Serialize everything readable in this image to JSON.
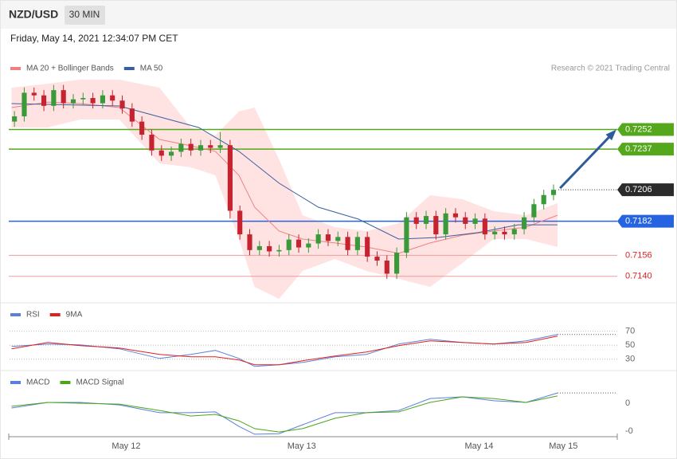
{
  "header": {
    "symbol": "NZD/USD",
    "interval": "30 MIN",
    "timestamp": "Friday, May 14, 2021 12:34:07 PM CET",
    "credit": "Research © 2021 Trading Central"
  },
  "chart_data": [
    {
      "type": "candlestick",
      "xlim": [
        0,
        62
      ],
      "ylim": [
        0.7121,
        0.7293
      ],
      "up_color": "#3a9a3a",
      "down_color": "#c62330",
      "open": [
        0.7258,
        0.7262,
        0.728,
        0.7278,
        0.727,
        0.7282,
        0.7272,
        0.7275,
        0.7276,
        0.7272,
        0.7278,
        0.7274,
        0.7268,
        0.7258,
        0.7248,
        0.7236,
        0.7232,
        0.7235,
        0.7241,
        0.7236,
        0.724,
        0.7238,
        0.724,
        0.719,
        0.7172,
        0.716,
        0.7163,
        0.7159,
        0.716,
        0.7168,
        0.7162,
        0.7165,
        0.7172,
        0.7167,
        0.717,
        0.716,
        0.717,
        0.7155,
        0.7152,
        0.7142,
        0.7158,
        0.7185,
        0.718,
        0.7186,
        0.7172,
        0.7188,
        0.7185,
        0.718,
        0.7184,
        0.7172,
        0.7174,
        0.7172,
        0.7176,
        0.7185,
        0.7195,
        0.7202
      ],
      "high": [
        0.7266,
        0.7284,
        0.7284,
        0.7282,
        0.7286,
        0.7286,
        0.7279,
        0.728,
        0.728,
        0.7282,
        0.7282,
        0.7278,
        0.7272,
        0.7262,
        0.7252,
        0.724,
        0.7239,
        0.7245,
        0.7245,
        0.7244,
        0.7244,
        0.725,
        0.7244,
        0.7194,
        0.7176,
        0.7167,
        0.7167,
        0.7164,
        0.7172,
        0.7172,
        0.7169,
        0.7176,
        0.7176,
        0.7174,
        0.7174,
        0.7174,
        0.7174,
        0.7159,
        0.7156,
        0.7162,
        0.7189,
        0.7189,
        0.719,
        0.719,
        0.7192,
        0.7192,
        0.7189,
        0.7188,
        0.7188,
        0.7178,
        0.7178,
        0.718,
        0.7189,
        0.7199,
        0.7206,
        0.721
      ],
      "low": [
        0.7254,
        0.7258,
        0.7274,
        0.7266,
        0.7266,
        0.7268,
        0.7268,
        0.7271,
        0.7268,
        0.7268,
        0.727,
        0.7264,
        0.7254,
        0.7244,
        0.7232,
        0.7228,
        0.7228,
        0.7231,
        0.7232,
        0.7232,
        0.7234,
        0.7234,
        0.7184,
        0.7168,
        0.7156,
        0.7156,
        0.7155,
        0.7155,
        0.7156,
        0.7158,
        0.7158,
        0.7161,
        0.7163,
        0.7163,
        0.7156,
        0.7156,
        0.7151,
        0.7148,
        0.7138,
        0.7138,
        0.7154,
        0.7176,
        0.7176,
        0.7168,
        0.7168,
        0.7181,
        0.7176,
        0.7176,
        0.7168,
        0.7168,
        0.7168,
        0.7168,
        0.7172,
        0.7181,
        0.7191,
        0.7198
      ],
      "close": [
        0.7262,
        0.728,
        0.7278,
        0.727,
        0.7282,
        0.7272,
        0.7275,
        0.7276,
        0.7272,
        0.7278,
        0.7274,
        0.7268,
        0.7258,
        0.7248,
        0.7236,
        0.7232,
        0.7235,
        0.7241,
        0.7236,
        0.724,
        0.7238,
        0.724,
        0.719,
        0.7172,
        0.716,
        0.7163,
        0.7159,
        0.716,
        0.7168,
        0.7162,
        0.7165,
        0.7172,
        0.7167,
        0.717,
        0.716,
        0.717,
        0.7155,
        0.7152,
        0.7142,
        0.7158,
        0.7185,
        0.718,
        0.7186,
        0.7172,
        0.7188,
        0.7185,
        0.718,
        0.7184,
        0.7172,
        0.7174,
        0.7172,
        0.7176,
        0.7185,
        0.7195,
        0.7202,
        0.7206
      ],
      "series": [
        {
          "name": "MA 20 + Bollinger Bands",
          "color": "#f08080",
          "band_color": "#ffdcdc",
          "x": [
            0.2,
            3.9,
            7.2,
            11.2,
            15.3,
            18.5,
            21,
            23.4,
            25,
            27.5,
            29.9,
            33.2,
            36.4,
            39.7,
            42.9,
            46.2,
            49.4,
            52.7,
            55.9
          ],
          "values": [
            0.72687,
            0.72729,
            0.72717,
            0.72687,
            0.72444,
            0.72395,
            0.72353,
            0.7217,
            0.71927,
            0.71745,
            0.71684,
            0.71654,
            0.71623,
            0.71575,
            0.71654,
            0.71714,
            0.71745,
            0.71775,
            0.71866
          ],
          "upper": [
            0.72839,
            0.72869,
            0.729,
            0.729,
            0.72839,
            0.72535,
            0.72475,
            0.72657,
            0.72687,
            0.72292,
            0.71866,
            0.71775,
            0.71745,
            0.71805,
            0.72018,
            0.71988,
            0.71897,
            0.71866,
            0.71958
          ],
          "lower": [
            0.72535,
            0.72535,
            0.72596,
            0.72596,
            0.72261,
            0.72231,
            0.7217,
            0.71684,
            0.71319,
            0.71228,
            0.71441,
            0.71532,
            0.71441,
            0.7138,
            0.71319,
            0.71502,
            0.71684,
            0.71684,
            0.71623
          ]
        },
        {
          "name": "MA 50",
          "color": "#3a5fa0",
          "x": [
            0.2,
            11.2,
            19.3,
            23.4,
            27.5,
            31.5,
            35.6,
            39.7,
            43.7,
            47.8,
            51.9,
            55.9
          ],
          "values": [
            0.72717,
            0.72699,
            0.72535,
            0.72353,
            0.7211,
            0.71927,
            0.71836,
            0.71684,
            0.71696,
            0.71733,
            0.71793,
            0.71793
          ]
        }
      ],
      "levels": [
        {
          "value": 0.7252,
          "label": "0.7252",
          "color": "#55a81c",
          "style": "box"
        },
        {
          "value": 0.7237,
          "label": "0.7237",
          "color": "#55a81c",
          "style": "box"
        },
        {
          "value": 0.7206,
          "label": "0.7206",
          "color": "#2b2b2b",
          "style": "current"
        },
        {
          "value": 0.7182,
          "label": "0.7182",
          "color": "#2563e0",
          "style": "box"
        },
        {
          "value": 0.7156,
          "label": "0.7156",
          "color": "#f29a9a",
          "style": "text"
        },
        {
          "value": 0.714,
          "label": "0.7140",
          "color": "#f29a9a",
          "style": "text"
        }
      ]
    },
    {
      "type": "line",
      "xlim": [
        0,
        62
      ],
      "ylim": [
        16,
        105
      ],
      "yticks": [
        30,
        50,
        70
      ],
      "grid": true,
      "x": [
        0.2,
        3.9,
        7.2,
        11.2,
        15.3,
        18.5,
        21,
        23.4,
        25,
        27.5,
        29.9,
        33.2,
        36.4,
        39.7,
        42.9,
        46.2,
        49.4,
        52.7,
        55.9
      ],
      "series": [
        {
          "name": "RSI",
          "color": "#5b7fdc",
          "values": [
            48.3,
            51.7,
            50.6,
            44.9,
            31.1,
            36.9,
            42.6,
            31.1,
            19.7,
            22,
            25.4,
            33.4,
            36.9,
            51.7,
            58.6,
            54,
            51.7,
            56.3,
            65.4
          ]
        },
        {
          "name": "9MA",
          "color": "#e0201b",
          "values": [
            44.9,
            54,
            49.4,
            46,
            36.9,
            33.4,
            33.4,
            28.9,
            22,
            22,
            27.7,
            34.6,
            40.3,
            49.4,
            56.3,
            54,
            51.7,
            54,
            63.1
          ]
        }
      ]
    },
    {
      "type": "line",
      "xlim": [
        0,
        62
      ],
      "ylim": [
        -0.0012,
        0.00103
      ],
      "yticks": [
        0,
        {
          "value": -0.001,
          "label": "-0"
        }
      ],
      "grid": false,
      "x": [
        0.2,
        3.9,
        7.2,
        11.2,
        15.3,
        18.5,
        21,
        23.4,
        25,
        27.5,
        29.9,
        33.2,
        36.4,
        39.7,
        42.9,
        46.2,
        49.4,
        52.7,
        55.9
      ],
      "xticks": [
        {
          "value": 11.9,
          "label": "May 12"
        },
        {
          "value": 29.8,
          "label": "May 13"
        },
        {
          "value": 47.9,
          "label": "May 14"
        },
        {
          "value": 56.5,
          "label": "May 15"
        }
      ],
      "series": [
        {
          "name": "MACD",
          "color": "#5b7fdc",
          "values": [
            -0.00017,
            3e-05,
            3e-05,
            -6e-05,
            -0.00034,
            -0.00034,
            -0.00031,
            -0.00083,
            -0.00111,
            -0.00109,
            -0.00077,
            -0.00034,
            -0.00034,
            -0.00026,
            0.00017,
            0.00023,
            9e-05,
            3e-05,
            0.00037
          ]
        },
        {
          "name": "MACD Signal",
          "color": "#4aa61a",
          "values": [
            -0.00011,
            3e-05,
            0,
            -3e-05,
            -0.00026,
            -0.00046,
            -0.0004,
            -0.00063,
            -0.00091,
            -0.00103,
            -0.00091,
            -0.00054,
            -0.00034,
            -0.00031,
            3e-05,
            0.00023,
            0.00017,
            3e-05,
            0.00026
          ]
        }
      ]
    }
  ]
}
